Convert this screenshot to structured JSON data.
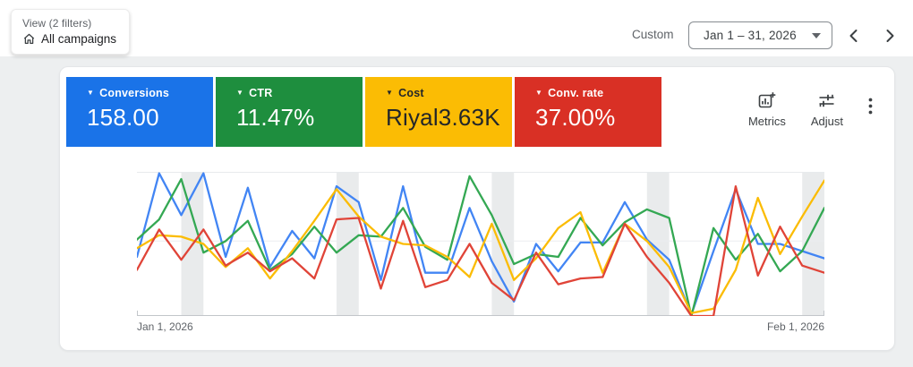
{
  "topbar": {
    "view_label": "View (2 filters)",
    "view_value": "All campaigns",
    "custom_label": "Custom",
    "date_range": "Jan 1 – 31, 2026"
  },
  "scorecards": [
    {
      "label": "Conversions",
      "value": "158.00",
      "color": "#1a73e8",
      "text_color": "#ffffff"
    },
    {
      "label": "CTR",
      "value": "11.47%",
      "color": "#1e8e3e",
      "text_color": "#ffffff"
    },
    {
      "label": "Cost",
      "value": "Riyal3.63K",
      "color": "#fbbc04",
      "text_color": "#232629"
    },
    {
      "label": "Conv. rate",
      "value": "37.00%",
      "color": "#d93025",
      "text_color": "#ffffff"
    }
  ],
  "toolbar": {
    "metrics_label": "Metrics",
    "adjust_label": "Adjust"
  },
  "chart_data": {
    "type": "line",
    "title": "",
    "xlabel": "",
    "ylabel": "",
    "x_axis_label_left": "Jan 1, 2026",
    "x_axis_label_right": "Feb 1, 2026",
    "y_axis_labels_visible": false,
    "ylim": [
      0,
      100
    ],
    "grid_midline_value": 52,
    "legend_position": "none (series colors match scorecards)",
    "band_color": "#e9ebec",
    "weekend_bands": [
      [
        2,
        3
      ],
      [
        9,
        10
      ],
      [
        16,
        17
      ],
      [
        23,
        24
      ],
      [
        30,
        31
      ]
    ],
    "x": [
      "Jan 1",
      "Jan 2",
      "Jan 3",
      "Jan 4",
      "Jan 5",
      "Jan 6",
      "Jan 7",
      "Jan 8",
      "Jan 9",
      "Jan 10",
      "Jan 11",
      "Jan 12",
      "Jan 13",
      "Jan 14",
      "Jan 15",
      "Jan 16",
      "Jan 17",
      "Jan 18",
      "Jan 19",
      "Jan 20",
      "Jan 21",
      "Jan 22",
      "Jan 23",
      "Jan 24",
      "Jan 25",
      "Jan 26",
      "Jan 27",
      "Jan 28",
      "Jan 29",
      "Jan 30",
      "Jan 31",
      "Feb 1"
    ],
    "series": [
      {
        "name": "Conversions",
        "color": "#4285f4",
        "values": [
          41,
          99,
          70,
          99,
          41,
          89,
          34,
          59,
          40,
          90,
          79,
          25,
          90,
          30,
          30,
          75,
          38,
          10,
          50,
          31,
          51,
          51,
          79,
          53,
          39,
          1,
          45,
          88,
          50,
          50,
          45,
          40
        ]
      },
      {
        "name": "CTR",
        "color": "#34a853",
        "values": [
          53,
          67,
          95,
          44,
          52,
          66,
          32,
          43,
          62,
          44,
          56,
          55,
          75,
          48,
          39,
          97,
          70,
          36,
          43,
          41,
          68,
          49,
          65,
          74,
          68,
          0,
          61,
          39,
          57,
          31,
          45,
          75
        ]
      },
      {
        "name": "Cost",
        "color": "#fbbc04",
        "values": [
          47,
          56,
          55,
          50,
          34,
          47,
          26,
          45,
          66,
          88,
          69,
          55,
          50,
          49,
          41,
          27,
          64,
          25,
          40,
          61,
          72,
          30,
          64,
          52,
          34,
          2,
          5,
          32,
          82,
          43,
          69,
          94
        ]
      },
      {
        "name": "Conv. rate",
        "color": "#e04438",
        "values": [
          32,
          60,
          39,
          60,
          35,
          44,
          31,
          40,
          26,
          67,
          68,
          19,
          66,
          20,
          25,
          50,
          23,
          11,
          44,
          22,
          26,
          27,
          64,
          41,
          23,
          0,
          0,
          90,
          28,
          62,
          35,
          30
        ]
      }
    ]
  }
}
